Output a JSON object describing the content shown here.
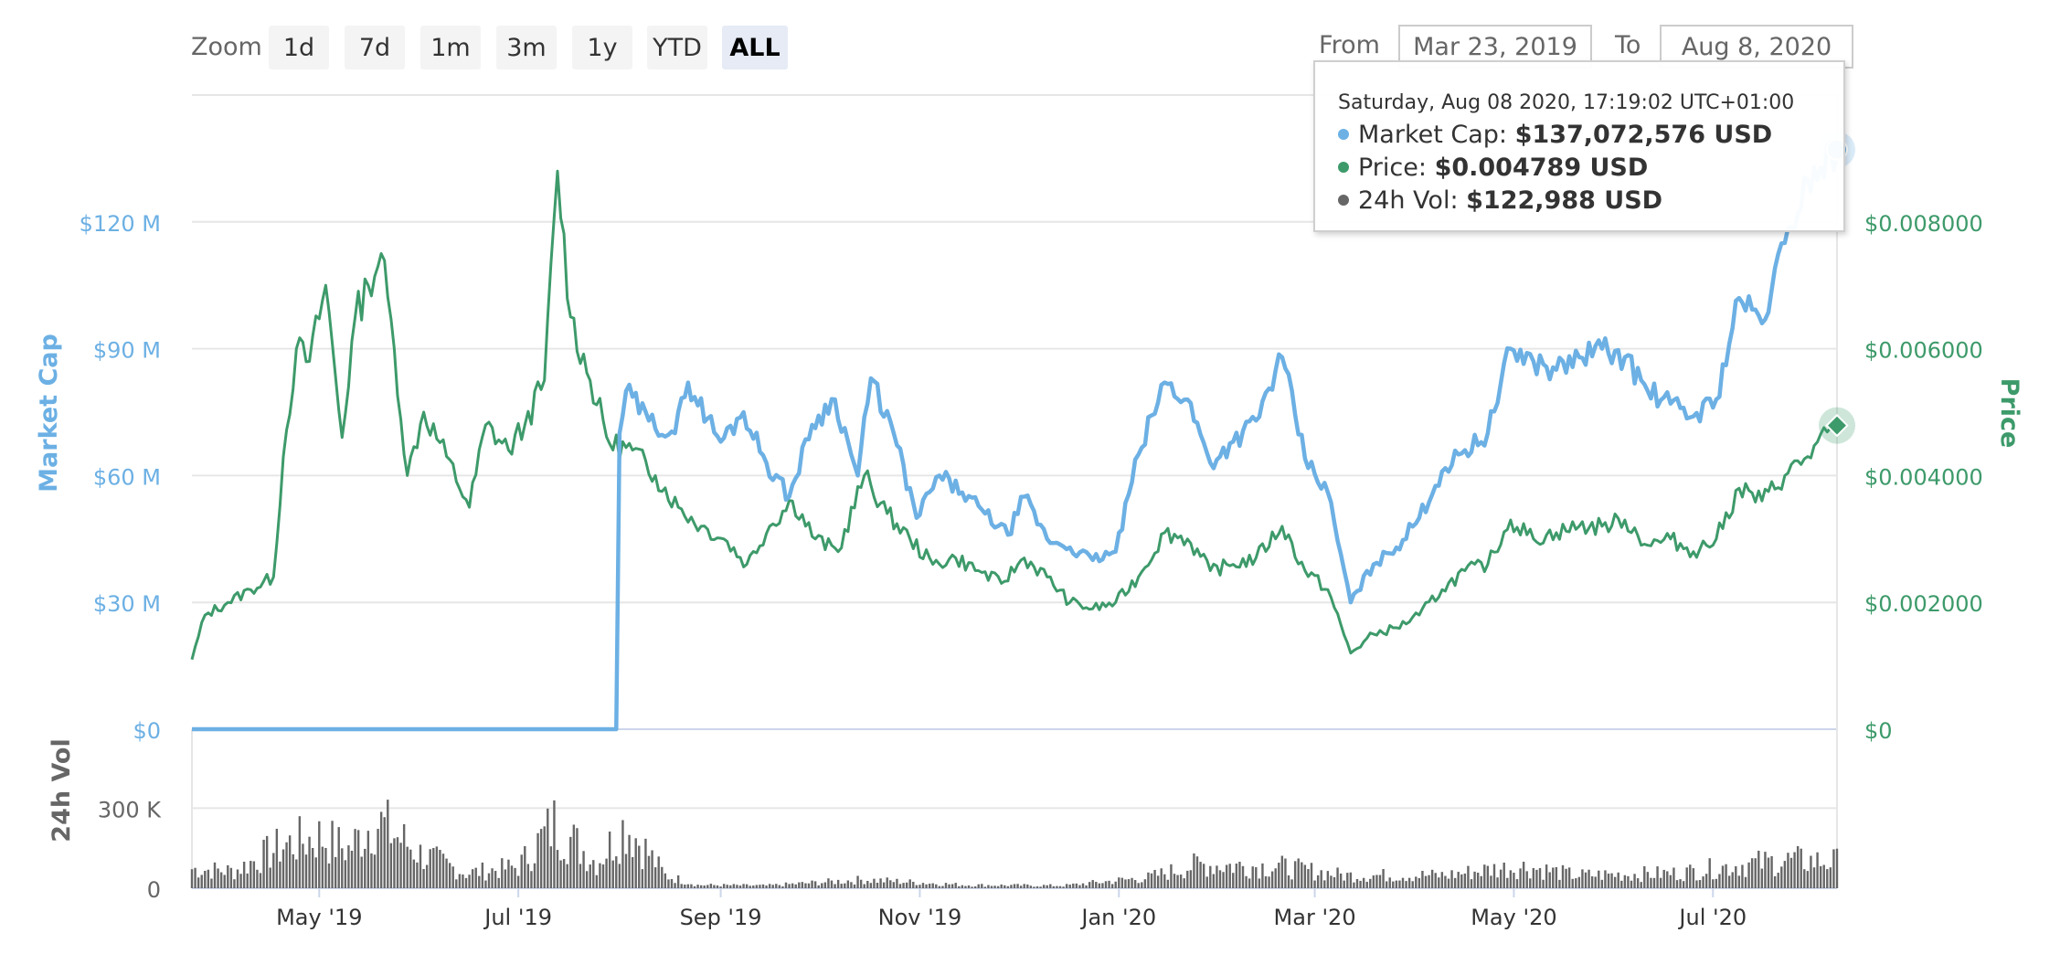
{
  "toolbar": {
    "zoom_label": "Zoom",
    "zoom_buttons": [
      {
        "label": "1d",
        "active": false
      },
      {
        "label": "7d",
        "active": false
      },
      {
        "label": "1m",
        "active": false
      },
      {
        "label": "3m",
        "active": false
      },
      {
        "label": "1y",
        "active": false
      },
      {
        "label": "YTD",
        "active": false
      },
      {
        "label": "ALL",
        "active": true
      }
    ],
    "from_label": "From",
    "from_value": "Mar 23, 2019",
    "to_label": "To",
    "to_value": "Aug 8, 2020"
  },
  "tooltip": {
    "date": "Saturday, Aug 08 2020, 17:19:02 UTC+01:00",
    "rows": [
      {
        "label": "Market Cap:",
        "value": "$137,072,576 USD",
        "color": "#6cb0e4"
      },
      {
        "label": "Price:",
        "value": "$0.004789 USD",
        "color": "#3d9a6a"
      },
      {
        "label": "24h Vol:",
        "value": "$122,988 USD",
        "color": "#666666"
      }
    ]
  },
  "chart_data": {
    "type": "line",
    "x_range": [
      "2019-03-23",
      "2020-08-08"
    ],
    "x_ticks": [
      {
        "label": "May '19",
        "date": "2019-05-01"
      },
      {
        "label": "Jul '19",
        "date": "2019-07-01"
      },
      {
        "label": "Sep '19",
        "date": "2019-09-01"
      },
      {
        "label": "Nov '19",
        "date": "2019-11-01"
      },
      {
        "label": "Jan '20",
        "date": "2020-01-01"
      },
      {
        "label": "Mar '20",
        "date": "2020-03-01"
      },
      {
        "label": "May '20",
        "date": "2020-05-01"
      },
      {
        "label": "Jul '20",
        "date": "2020-07-01"
      }
    ],
    "y_left": {
      "label": "Market Cap",
      "ticks": [
        "$0",
        "$30 M",
        "$60 M",
        "$90 M",
        "$120 M"
      ],
      "range": [
        0,
        150000000
      ],
      "color": "#6cb0e4"
    },
    "y_right": {
      "label": "Price",
      "ticks": [
        "$0",
        "$0.002000",
        "$0.004000",
        "$0.006000",
        "$0.008000"
      ],
      "range": [
        0,
        0.01
      ],
      "color": "#3d9a6a"
    },
    "y_volume": {
      "label": "24h Vol",
      "ticks": [
        "0",
        "300 K"
      ],
      "range": [
        0,
        500000
      ]
    },
    "grid": true,
    "series": [
      {
        "name": "Market Cap",
        "color": "#6cb0e4",
        "points": [
          [
            "2019-03-23",
            0
          ],
          [
            "2019-07-31",
            0
          ],
          [
            "2019-08-01",
            70000000
          ],
          [
            "2019-08-03",
            80000000
          ],
          [
            "2019-08-10",
            73000000
          ],
          [
            "2019-08-18",
            70000000
          ],
          [
            "2019-08-22",
            82000000
          ],
          [
            "2019-09-01",
            68000000
          ],
          [
            "2019-09-08",
            75000000
          ],
          [
            "2019-09-15",
            63000000
          ],
          [
            "2019-09-22",
            55000000
          ],
          [
            "2019-09-29",
            72000000
          ],
          [
            "2019-10-06",
            78000000
          ],
          [
            "2019-10-13",
            60000000
          ],
          [
            "2019-10-17",
            83000000
          ],
          [
            "2019-10-24",
            70000000
          ],
          [
            "2019-10-31",
            50000000
          ],
          [
            "2019-11-07",
            60000000
          ],
          [
            "2019-11-14",
            56000000
          ],
          [
            "2019-11-21",
            51000000
          ],
          [
            "2019-11-28",
            46000000
          ],
          [
            "2019-12-03",
            55000000
          ],
          [
            "2019-12-10",
            45000000
          ],
          [
            "2019-12-17",
            43000000
          ],
          [
            "2019-12-24",
            40000000
          ],
          [
            "2019-12-31",
            42000000
          ],
          [
            "2020-01-07",
            65000000
          ],
          [
            "2020-01-15",
            82000000
          ],
          [
            "2020-01-22",
            78000000
          ],
          [
            "2020-01-29",
            63000000
          ],
          [
            "2020-02-05",
            68000000
          ],
          [
            "2020-02-12",
            73000000
          ],
          [
            "2020-02-20",
            88000000
          ],
          [
            "2020-02-27",
            64000000
          ],
          [
            "2020-03-05",
            56000000
          ],
          [
            "2020-03-12",
            30000000
          ],
          [
            "2020-03-19",
            39000000
          ],
          [
            "2020-03-26",
            43000000
          ],
          [
            "2020-04-02",
            50000000
          ],
          [
            "2020-04-09",
            61000000
          ],
          [
            "2020-04-16",
            66000000
          ],
          [
            "2020-04-23",
            70000000
          ],
          [
            "2020-04-30",
            90000000
          ],
          [
            "2020-05-07",
            87000000
          ],
          [
            "2020-05-14",
            85000000
          ],
          [
            "2020-05-21",
            88000000
          ],
          [
            "2020-05-28",
            90000000
          ],
          [
            "2020-06-04",
            88000000
          ],
          [
            "2020-06-11",
            80000000
          ],
          [
            "2020-06-18",
            77000000
          ],
          [
            "2020-06-25",
            74000000
          ],
          [
            "2020-07-02",
            78000000
          ],
          [
            "2020-07-09",
            102000000
          ],
          [
            "2020-07-16",
            96000000
          ],
          [
            "2020-07-23",
            115000000
          ],
          [
            "2020-07-30",
            130000000
          ],
          [
            "2020-08-08",
            137072576
          ]
        ]
      },
      {
        "name": "Price",
        "color": "#3d9a6a",
        "points": [
          [
            "2019-03-23",
            0.0011
          ],
          [
            "2019-03-27",
            0.0018
          ],
          [
            "2019-04-03",
            0.002
          ],
          [
            "2019-04-10",
            0.0022
          ],
          [
            "2019-04-17",
            0.0024
          ],
          [
            "2019-04-20",
            0.0043
          ],
          [
            "2019-04-24",
            0.006
          ],
          [
            "2019-04-28",
            0.0058
          ],
          [
            "2019-05-03",
            0.007
          ],
          [
            "2019-05-08",
            0.0046
          ],
          [
            "2019-05-12",
            0.0065
          ],
          [
            "2019-05-16",
            0.007
          ],
          [
            "2019-05-20",
            0.0075
          ],
          [
            "2019-05-24",
            0.006
          ],
          [
            "2019-05-28",
            0.004
          ],
          [
            "2019-06-02",
            0.005
          ],
          [
            "2019-06-09",
            0.0043
          ],
          [
            "2019-06-16",
            0.0035
          ],
          [
            "2019-06-21",
            0.0048
          ],
          [
            "2019-06-28",
            0.0044
          ],
          [
            "2019-07-03",
            0.0048
          ],
          [
            "2019-07-09",
            0.0055
          ],
          [
            "2019-07-13",
            0.0088
          ],
          [
            "2019-07-17",
            0.0065
          ],
          [
            "2019-07-23",
            0.0055
          ],
          [
            "2019-07-29",
            0.0045
          ],
          [
            "2019-08-05",
            0.0044
          ],
          [
            "2019-08-12",
            0.004
          ],
          [
            "2019-08-19",
            0.0035
          ],
          [
            "2019-08-26",
            0.0032
          ],
          [
            "2019-09-02",
            0.003
          ],
          [
            "2019-09-09",
            0.0026
          ],
          [
            "2019-09-16",
            0.0032
          ],
          [
            "2019-09-23",
            0.0036
          ],
          [
            "2019-09-30",
            0.003
          ],
          [
            "2019-10-07",
            0.0028
          ],
          [
            "2019-10-15",
            0.004
          ],
          [
            "2019-10-22",
            0.0034
          ],
          [
            "2019-10-29",
            0.003
          ],
          [
            "2019-11-05",
            0.0026
          ],
          [
            "2019-11-12",
            0.0027
          ],
          [
            "2019-11-19",
            0.0025
          ],
          [
            "2019-11-26",
            0.0023
          ],
          [
            "2019-12-03",
            0.0027
          ],
          [
            "2019-12-10",
            0.0024
          ],
          [
            "2019-12-17",
            0.002
          ],
          [
            "2019-12-24",
            0.0019
          ],
          [
            "2019-12-31",
            0.002
          ],
          [
            "2020-01-07",
            0.0024
          ],
          [
            "2020-01-15",
            0.0031
          ],
          [
            "2020-01-22",
            0.003
          ],
          [
            "2020-01-29",
            0.0025
          ],
          [
            "2020-02-05",
            0.0026
          ],
          [
            "2020-02-12",
            0.0027
          ],
          [
            "2020-02-20",
            0.0032
          ],
          [
            "2020-02-27",
            0.0025
          ],
          [
            "2020-03-05",
            0.0022
          ],
          [
            "2020-03-12",
            0.0012
          ],
          [
            "2020-03-19",
            0.0015
          ],
          [
            "2020-03-26",
            0.0016
          ],
          [
            "2020-04-02",
            0.0018
          ],
          [
            "2020-04-09",
            0.0022
          ],
          [
            "2020-04-16",
            0.0025
          ],
          [
            "2020-04-23",
            0.0026
          ],
          [
            "2020-04-30",
            0.0033
          ],
          [
            "2020-05-07",
            0.003
          ],
          [
            "2020-05-14",
            0.0031
          ],
          [
            "2020-05-21",
            0.0032
          ],
          [
            "2020-05-28",
            0.0032
          ],
          [
            "2020-06-04",
            0.0033
          ],
          [
            "2020-06-11",
            0.0029
          ],
          [
            "2020-06-18",
            0.003
          ],
          [
            "2020-06-25",
            0.0028
          ],
          [
            "2020-07-02",
            0.003
          ],
          [
            "2020-07-09",
            0.0038
          ],
          [
            "2020-07-16",
            0.0036
          ],
          [
            "2020-07-23",
            0.004
          ],
          [
            "2020-07-30",
            0.0043
          ],
          [
            "2020-08-08",
            0.004789
          ]
        ]
      }
    ],
    "volume": {
      "name": "24h Vol",
      "color": "#666666",
      "points": [
        [
          "2019-03-23",
          90000
        ],
        [
          "2019-04-05",
          80000
        ],
        [
          "2019-04-20",
          200000
        ],
        [
          "2019-05-01",
          240000
        ],
        [
          "2019-05-10",
          180000
        ],
        [
          "2019-05-18",
          320000
        ],
        [
          "2019-06-01",
          160000
        ],
        [
          "2019-06-15",
          70000
        ],
        [
          "2019-07-01",
          100000
        ],
        [
          "2019-07-12",
          300000
        ],
        [
          "2019-07-25",
          120000
        ],
        [
          "2019-08-03",
          300000
        ],
        [
          "2019-08-15",
          60000
        ],
        [
          "2019-08-25",
          15000
        ],
        [
          "2019-09-15",
          12000
        ],
        [
          "2019-10-15",
          40000
        ],
        [
          "2019-11-15",
          15000
        ],
        [
          "2019-12-15",
          12000
        ],
        [
          "2020-01-10",
          50000
        ],
        [
          "2020-01-25",
          110000
        ],
        [
          "2020-02-20",
          100000
        ],
        [
          "2020-03-10",
          60000
        ],
        [
          "2020-04-10",
          60000
        ],
        [
          "2020-04-25",
          90000
        ],
        [
          "2020-05-05",
          100000
        ],
        [
          "2020-05-20",
          60000
        ],
        [
          "2020-06-20",
          70000
        ],
        [
          "2020-07-10",
          110000
        ],
        [
          "2020-07-25",
          130000
        ],
        [
          "2020-08-08",
          122988
        ]
      ]
    },
    "highlight": {
      "date": "2020-08-08",
      "market_cap": 137072576,
      "price": 0.004789
    }
  }
}
